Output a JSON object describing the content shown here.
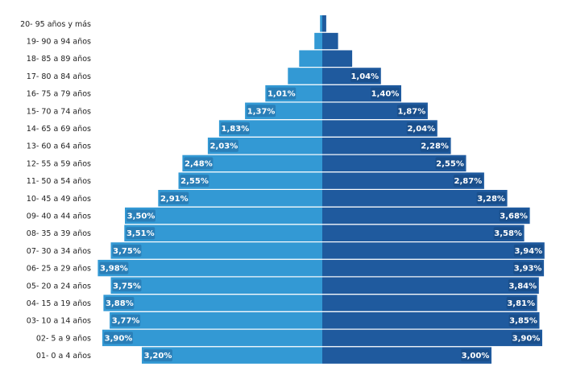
{
  "chart_data": {
    "type": "bar",
    "orientation": "horizontal-population-pyramid",
    "categories": [
      "20- 95 años y más",
      "19- 90 a 94 años",
      "18- 85 a 89 años",
      "17- 80 a 84 años",
      "16- 75 a 79 años",
      "15- 70 a 74 años",
      "14- 65 a 69 años",
      "13- 60 a 64 años",
      "12- 55 a 59 años",
      "11- 50 a 54 años",
      "10- 45 a 49 años",
      "09- 40 a 44 años",
      "08- 35 a 39 años",
      "07- 30 a 34 años",
      "06- 25 a 29 años",
      "05- 20 a 24 años",
      "04- 15 a 19 años",
      "03- 10 a 14 años",
      "02- 5 a 9 años",
      "01- 0 a 4 años"
    ],
    "series": [
      {
        "side": "left",
        "values": [
          0.04,
          0.14,
          0.41,
          0.61,
          1.01,
          1.37,
          1.83,
          2.03,
          2.48,
          2.55,
          2.91,
          3.5,
          3.51,
          3.75,
          3.98,
          3.75,
          3.88,
          3.77,
          3.9,
          3.2
        ],
        "labels": [
          "",
          "",
          "",
          "",
          "1,01%",
          "1,37%",
          "1,83%",
          "2,03%",
          "2,48%",
          "2,55%",
          "2,91%",
          "3,50%",
          "3,51%",
          "3,75%",
          "3,98%",
          "3,75%",
          "3,88%",
          "3,77%",
          "3,90%",
          "3,20%"
        ]
      },
      {
        "side": "right",
        "values": [
          0.07,
          0.28,
          0.53,
          1.04,
          1.4,
          1.87,
          2.04,
          2.28,
          2.55,
          2.87,
          3.28,
          3.68,
          3.58,
          3.94,
          3.93,
          3.84,
          3.81,
          3.85,
          3.9,
          3.0
        ],
        "labels": [
          "",
          "",
          "",
          "1,04%",
          "1,40%",
          "1,87%",
          "2,04%",
          "2,28%",
          "2,55%",
          "2,87%",
          "3,28%",
          "3,68%",
          "3,58%",
          "3,94%",
          "3,93%",
          "3,84%",
          "3,81%",
          "3,85%",
          "3,90%",
          "3,00%"
        ]
      }
    ],
    "colors": {
      "left_bar": "#3399d4",
      "right_bar": "#1f5a9e",
      "left_label_bg": "#2a7fb8",
      "right_label_bg": "#1a4f8c"
    },
    "xlim": [
      0,
      4.1
    ],
    "grid": false,
    "legend": "none"
  }
}
